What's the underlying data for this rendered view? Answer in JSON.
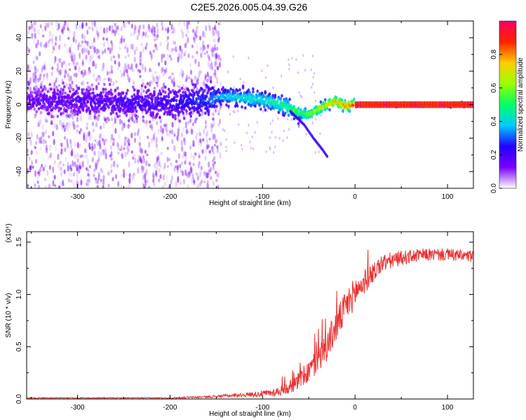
{
  "title": "C2E5.2026.005.04.39.G26",
  "colors": {
    "snr_line": "#e8302f",
    "background": "#ffffff",
    "axis": "#000000",
    "colormap": [
      "#ffffff",
      "#7b00ff",
      "#2200ff",
      "#00ccff",
      "#00ff66",
      "#99ff00",
      "#ffcc00",
      "#ff2200",
      "#ff0066"
    ]
  },
  "chart_data": [
    {
      "type": "heatmap",
      "name": "spectrogram",
      "xlabel": "Height of straight line (km)",
      "ylabel": "Frequency (Hz)",
      "xlim": [
        -355,
        128
      ],
      "ylim": [
        -50,
        50
      ],
      "xticks": [
        -300,
        -200,
        -100,
        0,
        100
      ],
      "xtick_labels": [
        "-300",
        "-200",
        "-100",
        "0",
        "100"
      ],
      "yticks": [
        -40,
        -20,
        0,
        20,
        40
      ],
      "ytick_labels": [
        "-40",
        "-20",
        "0",
        "20",
        "40"
      ],
      "colorbar": {
        "label": "Normalized spectral amplitude",
        "range": [
          0,
          1
        ],
        "ticks": [
          0.0,
          0.2,
          0.4,
          0.6,
          0.8
        ],
        "tick_labels": [
          "0.0",
          "0.2",
          "0.4",
          "0.6",
          "0.8"
        ]
      },
      "ridge": {
        "description_points_x": [
          -355,
          -300,
          -250,
          -200,
          -160,
          -140,
          -120,
          -100,
          -80,
          -60,
          -50,
          -40,
          -30,
          -20,
          -10,
          0,
          20,
          50,
          128
        ],
        "description_points_y": [
          2,
          2,
          1,
          1,
          3,
          5,
          4,
          3,
          0,
          -5,
          -6,
          -3,
          0,
          2,
          -1,
          0,
          0,
          0,
          0
        ],
        "amplitude": [
          0.15,
          0.18,
          0.2,
          0.22,
          0.3,
          0.4,
          0.45,
          0.45,
          0.5,
          0.55,
          0.6,
          0.7,
          0.75,
          0.8,
          0.85,
          0.9,
          0.95,
          0.95,
          0.95
        ]
      },
      "spread_hz_start": 50,
      "noise_end_x": -155,
      "branch": {
        "x": [
          -70,
          -55,
          -45,
          -35,
          -30
        ],
        "y": [
          -4,
          -12,
          -20,
          -27,
          -31
        ]
      }
    },
    {
      "type": "line",
      "name": "snr",
      "xlabel": "Height of straight line (km)",
      "ylabel": "SNR (10 * v/v)",
      "scale_label": "(x10⁴)",
      "xlim": [
        -355,
        128
      ],
      "ylim": [
        0,
        1.6
      ],
      "xticks": [
        -300,
        -200,
        -100,
        0,
        100
      ],
      "xtick_labels": [
        "-300",
        "-200",
        "-100",
        "0",
        "100"
      ],
      "yticks": [
        0.0,
        0.5,
        1.0,
        1.5
      ],
      "ytick_labels": [
        "0.0",
        "0.5",
        "1.0",
        "1.5"
      ],
      "series": [
        {
          "name": "SNR",
          "x": [
            -355,
            -300,
            -250,
            -200,
            -160,
            -140,
            -120,
            -100,
            -90,
            -80,
            -70,
            -60,
            -50,
            -40,
            -30,
            -20,
            -10,
            0,
            10,
            20,
            30,
            50,
            75,
            100,
            128
          ],
          "y": [
            0.01,
            0.01,
            0.01,
            0.01,
            0.02,
            0.03,
            0.04,
            0.05,
            0.06,
            0.08,
            0.12,
            0.18,
            0.26,
            0.38,
            0.52,
            0.7,
            0.88,
            1.02,
            1.12,
            1.22,
            1.3,
            1.35,
            1.38,
            1.38,
            1.36
          ],
          "noise": [
            0.005,
            0.005,
            0.005,
            0.006,
            0.01,
            0.015,
            0.02,
            0.03,
            0.04,
            0.05,
            0.07,
            0.09,
            0.11,
            0.13,
            0.15,
            0.16,
            0.16,
            0.15,
            0.12,
            0.1,
            0.09,
            0.07,
            0.06,
            0.06,
            0.06
          ]
        }
      ]
    }
  ]
}
